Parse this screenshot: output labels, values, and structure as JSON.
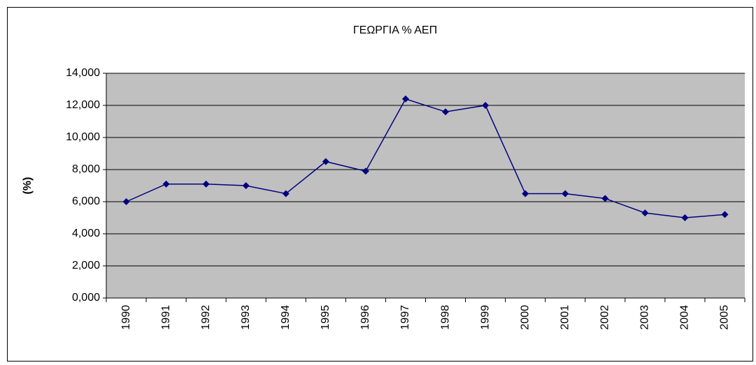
{
  "chart_data": {
    "type": "line",
    "title": "ΓΕΩΡΓΙΑ % ΑΕΠ",
    "y_label": "(%)",
    "categories": [
      "1990",
      "1991",
      "1992",
      "1993",
      "1994",
      "1995",
      "1996",
      "1997",
      "1998",
      "1999",
      "2000",
      "2001",
      "2002",
      "2003",
      "2004",
      "2005"
    ],
    "series": [
      {
        "name": "ΓΕΩΡΓΙΑ % ΑΕΠ",
        "color": "#000080",
        "values": [
          6.0,
          7.1,
          7.1,
          7.0,
          6.5,
          8.5,
          7.9,
          12.4,
          11.6,
          12.0,
          6.5,
          6.5,
          6.2,
          5.3,
          5.0,
          5.2
        ]
      }
    ],
    "ylim": [
      0,
      14
    ],
    "yticks": [
      {
        "value": 0,
        "label": "0,000"
      },
      {
        "value": 2,
        "label": "2,000"
      },
      {
        "value": 4,
        "label": "4,000"
      },
      {
        "value": 6,
        "label": "6,000"
      },
      {
        "value": 8,
        "label": "8,000"
      },
      {
        "value": 10,
        "label": "10,000"
      },
      {
        "value": 12,
        "label": "12,000"
      },
      {
        "value": 14,
        "label": "14,000"
      }
    ],
    "grid": true,
    "plot_background": "#c0c0c0"
  }
}
